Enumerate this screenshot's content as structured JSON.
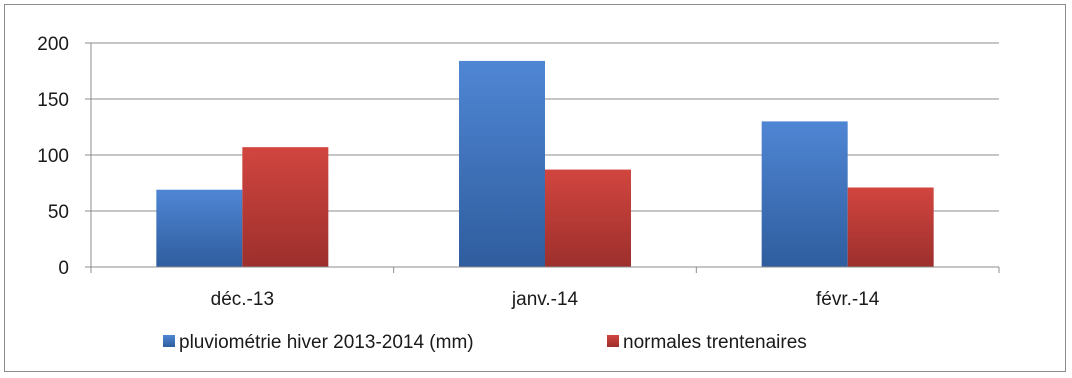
{
  "chart_data": {
    "type": "bar",
    "categories": [
      "déc.-13",
      "janv.-14",
      "févr.-14"
    ],
    "series": [
      {
        "name": "pluviométrie hiver 2013-2014 (mm)",
        "values": [
          69,
          184,
          130
        ],
        "color": "#4a7fc8"
      },
      {
        "name": "normales trentenaires",
        "values": [
          107,
          87,
          71
        ],
        "color": "#c8403c"
      }
    ],
    "yticks": [
      "0",
      "50",
      "100",
      "150",
      "200"
    ],
    "ylim": [
      0,
      200
    ],
    "grid": true,
    "legend_position": "bottom",
    "title": "",
    "xlabel": "",
    "ylabel": ""
  }
}
